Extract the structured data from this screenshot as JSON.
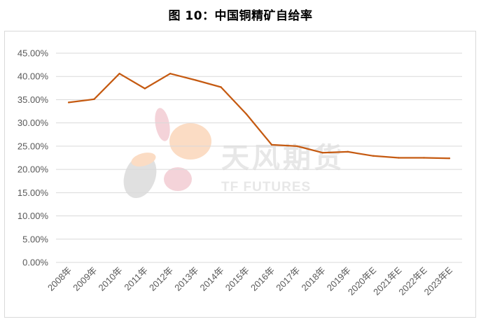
{
  "watermark": {
    "cn": "天风期货",
    "en": "TF FUTURES",
    "petal_colors": [
      "#f4d3d9",
      "#fbdcc4",
      "#e0e0e0",
      "#f4d3d9",
      "#fbdcc4"
    ]
  },
  "chart_data": {
    "type": "line",
    "title": "图 10：中国铜精矿自给率",
    "xlabel": "",
    "ylabel": "",
    "categories": [
      "2008年",
      "2009年",
      "2010年",
      "2011年",
      "2012年",
      "2013年",
      "2014年",
      "2015年",
      "2016年",
      "2017年",
      "2018年",
      "2019年",
      "2020年E",
      "2021年E",
      "2022年E",
      "2023年E"
    ],
    "series": [
      {
        "color": "#c55a11",
        "values": [
          34.4,
          35.1,
          40.6,
          37.4,
          40.6,
          39.2,
          37.7,
          31.9,
          25.3,
          25.0,
          23.6,
          23.8,
          22.9,
          22.5,
          22.5,
          22.4
        ]
      }
    ],
    "ylim": [
      0,
      45
    ],
    "yticks": [
      "0.00%",
      "5.00%",
      "10.00%",
      "15.00%",
      "20.00%",
      "25.00%",
      "30.00%",
      "35.00%",
      "40.00%",
      "45.00%"
    ],
    "grid": true,
    "legend": "none"
  }
}
